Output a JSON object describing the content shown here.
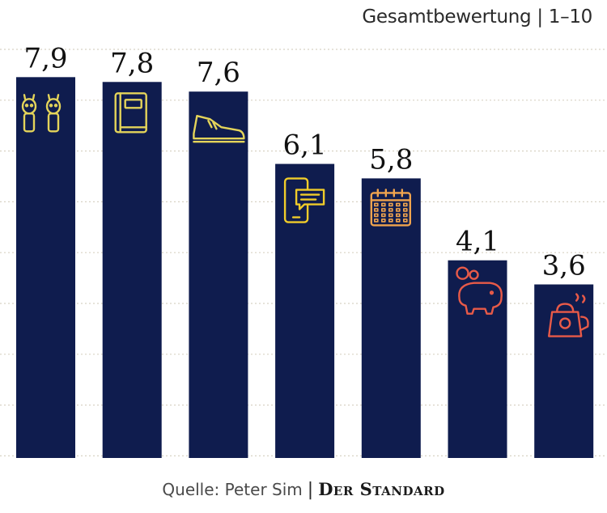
{
  "chart_data": {
    "type": "bar",
    "title": "Gesamtbewertung | 1–10",
    "values": [
      7.9,
      7.8,
      7.6,
      6.1,
      5.8,
      4.1,
      3.6
    ],
    "value_labels": [
      "7,9",
      "7,8",
      "7,6",
      "6,1",
      "5,8",
      "4,1",
      "3,6"
    ],
    "icons": [
      "rabbit-toys-icon",
      "book-icon",
      "shoe-icon",
      "phone-chat-icon",
      "calendar-icon",
      "piggy-bank-icon",
      "kettle-icon"
    ],
    "ylim": [
      0,
      9.5
    ],
    "grid": true,
    "bar_color": "#0f1c4e",
    "grid_color": "#d8d2c4",
    "icon_colors": [
      "#e4d45a",
      "#e4d45a",
      "#e4d45a",
      "#f0cc2a",
      "#f0a44e",
      "#e85a48",
      "#e85a48"
    ]
  },
  "footer": {
    "source": "Quelle: Peter Sim",
    "separator": "|",
    "brand": "Der Standard"
  }
}
